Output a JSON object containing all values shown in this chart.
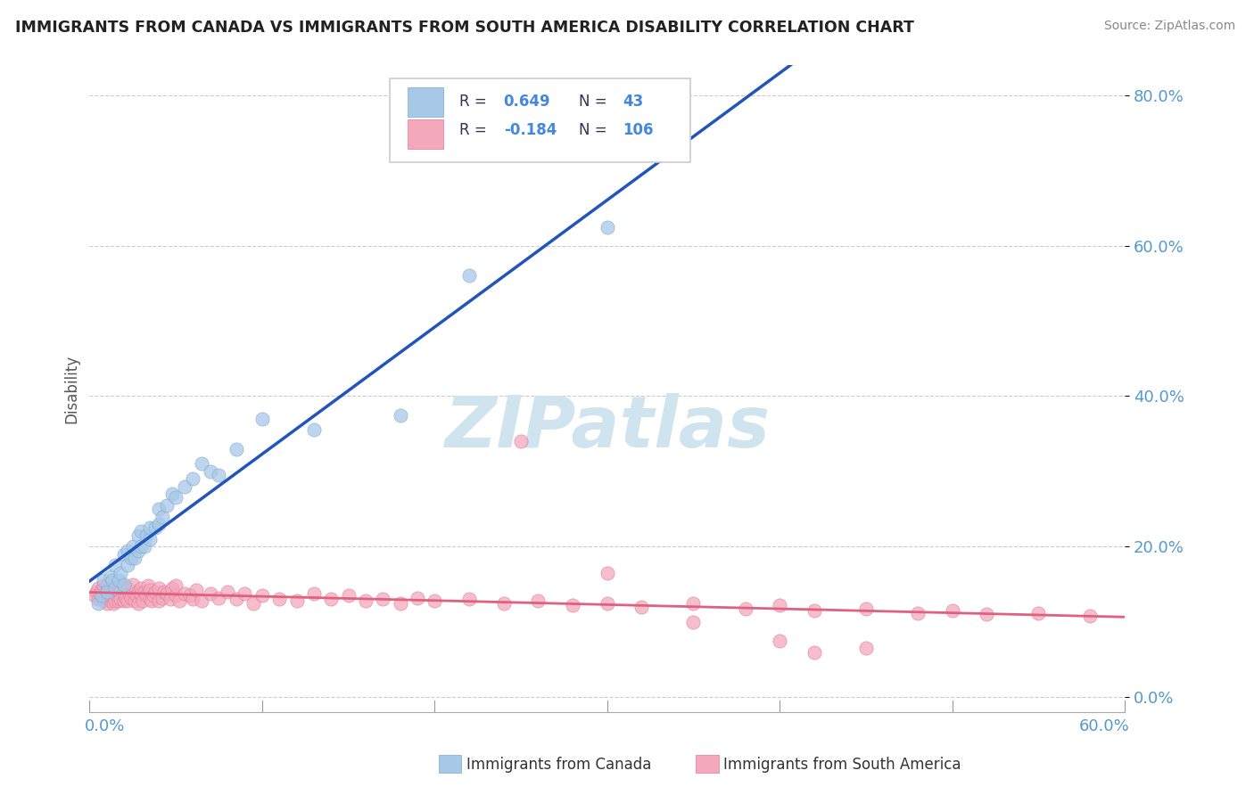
{
  "title": "IMMIGRANTS FROM CANADA VS IMMIGRANTS FROM SOUTH AMERICA DISABILITY CORRELATION CHART",
  "source": "Source: ZipAtlas.com",
  "ylabel": "Disability",
  "canada_color": "#A8C8E8",
  "canada_edge_color": "#7AAAD0",
  "sa_color": "#F4A8BC",
  "sa_edge_color": "#E07898",
  "canada_line_color": "#2255BB",
  "sa_line_color": "#E06080",
  "dash_color": "#AAAAAA",
  "watermark_text": "ZIPatlas",
  "watermark_color": "#D0E4F0",
  "tick_color": "#5599CC",
  "grid_color": "#CCCCCC",
  "xlim": [
    0.0,
    0.6
  ],
  "ylim": [
    -0.02,
    0.84
  ],
  "ytick_vals": [
    0.0,
    0.2,
    0.4,
    0.6,
    0.8
  ],
  "ytick_labels": [
    "0.0%",
    "20.0%",
    "40.0%",
    "60.0%",
    "80.0%"
  ],
  "xtick_positions": [
    0.0,
    0.1,
    0.2,
    0.3,
    0.4,
    0.5,
    0.6
  ],
  "legend_canada_r": "0.649",
  "legend_canada_n": "43",
  "legend_sa_r": "-0.184",
  "legend_sa_n": "106",
  "canada_x": [
    0.005,
    0.007,
    0.008,
    0.01,
    0.012,
    0.013,
    0.015,
    0.015,
    0.017,
    0.018,
    0.02,
    0.02,
    0.022,
    0.022,
    0.024,
    0.025,
    0.026,
    0.028,
    0.028,
    0.03,
    0.03,
    0.032,
    0.033,
    0.035,
    0.035,
    0.038,
    0.04,
    0.04,
    0.042,
    0.045,
    0.048,
    0.05,
    0.055,
    0.06,
    0.065,
    0.07,
    0.075,
    0.085,
    0.1,
    0.13,
    0.18,
    0.22,
    0.3
  ],
  "canada_y": [
    0.125,
    0.135,
    0.155,
    0.14,
    0.16,
    0.155,
    0.145,
    0.175,
    0.155,
    0.165,
    0.15,
    0.19,
    0.175,
    0.195,
    0.185,
    0.2,
    0.185,
    0.195,
    0.215,
    0.2,
    0.22,
    0.2,
    0.215,
    0.21,
    0.225,
    0.225,
    0.23,
    0.25,
    0.24,
    0.255,
    0.27,
    0.265,
    0.28,
    0.29,
    0.31,
    0.3,
    0.295,
    0.33,
    0.37,
    0.355,
    0.375,
    0.56,
    0.625
  ],
  "sa_x": [
    0.003,
    0.004,
    0.005,
    0.005,
    0.006,
    0.007,
    0.008,
    0.008,
    0.009,
    0.01,
    0.01,
    0.01,
    0.011,
    0.012,
    0.012,
    0.013,
    0.013,
    0.014,
    0.015,
    0.015,
    0.015,
    0.016,
    0.017,
    0.017,
    0.018,
    0.018,
    0.019,
    0.02,
    0.02,
    0.02,
    0.021,
    0.022,
    0.022,
    0.023,
    0.024,
    0.025,
    0.025,
    0.026,
    0.027,
    0.028,
    0.028,
    0.03,
    0.03,
    0.031,
    0.032,
    0.033,
    0.034,
    0.035,
    0.035,
    0.036,
    0.037,
    0.038,
    0.04,
    0.04,
    0.042,
    0.043,
    0.045,
    0.047,
    0.048,
    0.05,
    0.05,
    0.052,
    0.055,
    0.058,
    0.06,
    0.062,
    0.065,
    0.07,
    0.075,
    0.08,
    0.085,
    0.09,
    0.095,
    0.1,
    0.11,
    0.12,
    0.13,
    0.14,
    0.15,
    0.16,
    0.17,
    0.18,
    0.19,
    0.2,
    0.22,
    0.24,
    0.26,
    0.28,
    0.3,
    0.32,
    0.35,
    0.38,
    0.4,
    0.42,
    0.45,
    0.48,
    0.5,
    0.52,
    0.55,
    0.58,
    0.25,
    0.3,
    0.35,
    0.4,
    0.42,
    0.45
  ],
  "sa_y": [
    0.135,
    0.14,
    0.13,
    0.145,
    0.138,
    0.142,
    0.128,
    0.148,
    0.132,
    0.125,
    0.138,
    0.148,
    0.135,
    0.128,
    0.145,
    0.132,
    0.14,
    0.125,
    0.138,
    0.148,
    0.128,
    0.135,
    0.142,
    0.128,
    0.14,
    0.13,
    0.145,
    0.128,
    0.138,
    0.148,
    0.132,
    0.145,
    0.128,
    0.138,
    0.132,
    0.14,
    0.15,
    0.128,
    0.135,
    0.14,
    0.125,
    0.138,
    0.145,
    0.128,
    0.14,
    0.135,
    0.148,
    0.13,
    0.142,
    0.128,
    0.135,
    0.14,
    0.128,
    0.145,
    0.132,
    0.14,
    0.138,
    0.13,
    0.145,
    0.135,
    0.148,
    0.128,
    0.138,
    0.135,
    0.13,
    0.142,
    0.128,
    0.138,
    0.132,
    0.14,
    0.13,
    0.138,
    0.125,
    0.135,
    0.13,
    0.128,
    0.138,
    0.13,
    0.135,
    0.128,
    0.13,
    0.125,
    0.132,
    0.128,
    0.13,
    0.125,
    0.128,
    0.122,
    0.125,
    0.12,
    0.125,
    0.118,
    0.122,
    0.115,
    0.118,
    0.112,
    0.115,
    0.11,
    0.112,
    0.108,
    0.34,
    0.165,
    0.1,
    0.075,
    0.06,
    0.065
  ]
}
